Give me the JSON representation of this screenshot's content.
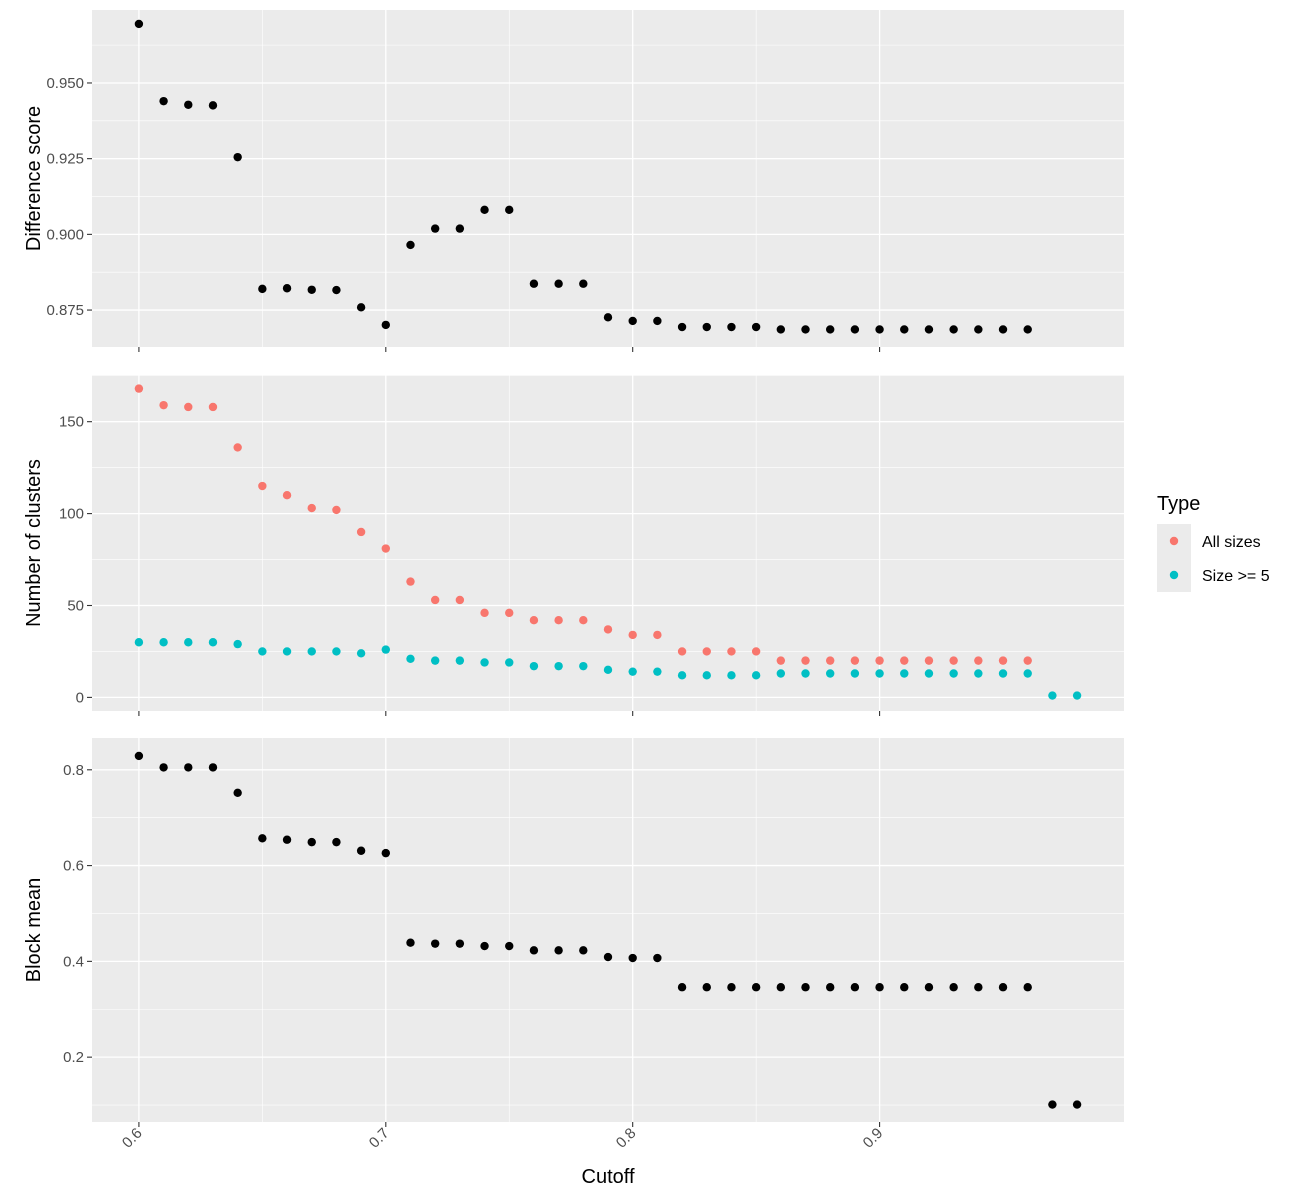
{
  "chart_data": {
    "type": "scatter",
    "x_label": "Cutoff",
    "x_ticks": [
      "0.6",
      "0.7",
      "0.8",
      "0.9"
    ],
    "xlim": [
      0.581,
      0.999
    ],
    "grid": true,
    "legend": {
      "title": "Type",
      "position": "right",
      "entries": [
        {
          "label": "All sizes",
          "color": "#F8766D"
        },
        {
          "label": "Size >= 5",
          "color": "#00BFC4"
        }
      ]
    },
    "panels": [
      {
        "id": "difference-score",
        "ylabel": "Difference score",
        "ylim": [
          0.8628,
          0.9741
        ],
        "y_ticks": [
          0.875,
          0.9,
          0.925,
          0.95
        ],
        "y_tick_labels": [
          "0.875",
          "0.900",
          "0.925",
          "0.950"
        ],
        "series": [
          {
            "color": "#000000",
            "x": [
              0.6,
              0.61,
              0.62,
              0.63,
              0.64,
              0.65,
              0.66,
              0.67,
              0.68,
              0.69,
              0.7,
              0.71,
              0.72,
              0.73,
              0.74,
              0.75,
              0.76,
              0.77,
              0.78,
              0.79,
              0.8,
              0.81,
              0.82,
              0.83,
              0.84,
              0.85,
              0.86,
              0.87,
              0.88,
              0.89,
              0.9,
              0.91,
              0.92,
              0.93,
              0.94,
              0.95,
              0.96
            ],
            "y": [
              0.9695,
              0.944,
              0.9428,
              0.9426,
              0.9255,
              0.882,
              0.8822,
              0.8817,
              0.8816,
              0.8759,
              0.8701,
              0.8965,
              0.9019,
              0.9019,
              0.9081,
              0.9081,
              0.8837,
              0.8837,
              0.8837,
              0.8726,
              0.8714,
              0.8714,
              0.8694,
              0.8694,
              0.8694,
              0.8694,
              0.8686,
              0.8686,
              0.8686,
              0.8686,
              0.8686,
              0.8686,
              0.8686,
              0.8686,
              0.8686,
              0.8686,
              0.8686
            ]
          }
        ]
      },
      {
        "id": "number-of-clusters",
        "ylabel": "Number of clusters",
        "ylim": [
          -7.4,
          175.4
        ],
        "y_ticks": [
          0,
          50,
          100,
          150
        ],
        "y_tick_labels": [
          "0",
          "50",
          "100",
          "150"
        ],
        "series": [
          {
            "name": "All sizes",
            "color": "#F8766D",
            "x": [
              0.6,
              0.61,
              0.62,
              0.63,
              0.64,
              0.65,
              0.66,
              0.67,
              0.68,
              0.69,
              0.7,
              0.71,
              0.72,
              0.73,
              0.74,
              0.75,
              0.76,
              0.77,
              0.78,
              0.79,
              0.8,
              0.81,
              0.82,
              0.83,
              0.84,
              0.85,
              0.86,
              0.87,
              0.88,
              0.89,
              0.9,
              0.91,
              0.92,
              0.93,
              0.94,
              0.95,
              0.96
            ],
            "y": [
              168,
              159,
              158,
              158,
              136,
              115,
              110,
              103,
              102,
              90,
              81,
              63,
              53,
              53,
              46,
              46,
              42,
              42,
              42,
              37,
              34,
              34,
              25,
              25,
              25,
              25,
              20,
              20,
              20,
              20,
              20,
              20,
              20,
              20,
              20,
              20,
              20
            ]
          },
          {
            "name": "Size >= 5",
            "color": "#00BFC4",
            "x": [
              0.6,
              0.61,
              0.62,
              0.63,
              0.64,
              0.65,
              0.66,
              0.67,
              0.68,
              0.69,
              0.7,
              0.71,
              0.72,
              0.73,
              0.74,
              0.75,
              0.76,
              0.77,
              0.78,
              0.79,
              0.8,
              0.81,
              0.82,
              0.83,
              0.84,
              0.85,
              0.86,
              0.87,
              0.88,
              0.89,
              0.9,
              0.91,
              0.92,
              0.93,
              0.94,
              0.95,
              0.96,
              0.97,
              0.98
            ],
            "y": [
              30,
              30,
              30,
              30,
              29,
              25,
              25,
              25,
              25,
              24,
              26,
              21,
              20,
              20,
              19,
              19,
              17,
              17,
              17,
              15,
              14,
              14,
              12,
              12,
              12,
              12,
              13,
              13,
              13,
              13,
              13,
              13,
              13,
              13,
              13,
              13,
              13,
              1,
              1
            ]
          }
        ]
      },
      {
        "id": "block-mean",
        "ylabel": "Block mean",
        "ylim": [
          0.0646,
          0.8664
        ],
        "y_ticks": [
          0.2,
          0.4,
          0.6,
          0.8
        ],
        "y_tick_labels": [
          "0.2",
          "0.4",
          "0.6",
          "0.8"
        ],
        "series": [
          {
            "color": "#000000",
            "x": [
              0.6,
              0.61,
              0.62,
              0.63,
              0.64,
              0.65,
              0.66,
              0.67,
              0.68,
              0.69,
              0.7,
              0.71,
              0.72,
              0.73,
              0.74,
              0.75,
              0.76,
              0.77,
              0.78,
              0.79,
              0.8,
              0.81,
              0.82,
              0.83,
              0.84,
              0.85,
              0.86,
              0.87,
              0.88,
              0.89,
              0.9,
              0.91,
              0.92,
              0.93,
              0.94,
              0.95,
              0.96,
              0.97,
              0.98
            ],
            "y": [
              0.829,
              0.805,
              0.805,
              0.805,
              0.752,
              0.657,
              0.654,
              0.649,
              0.649,
              0.631,
              0.626,
              0.439,
              0.437,
              0.437,
              0.432,
              0.432,
              0.423,
              0.423,
              0.423,
              0.409,
              0.407,
              0.407,
              0.346,
              0.346,
              0.346,
              0.346,
              0.346,
              0.346,
              0.346,
              0.346,
              0.346,
              0.346,
              0.346,
              0.346,
              0.346,
              0.346,
              0.346,
              0.101,
              0.101
            ]
          }
        ]
      }
    ]
  }
}
